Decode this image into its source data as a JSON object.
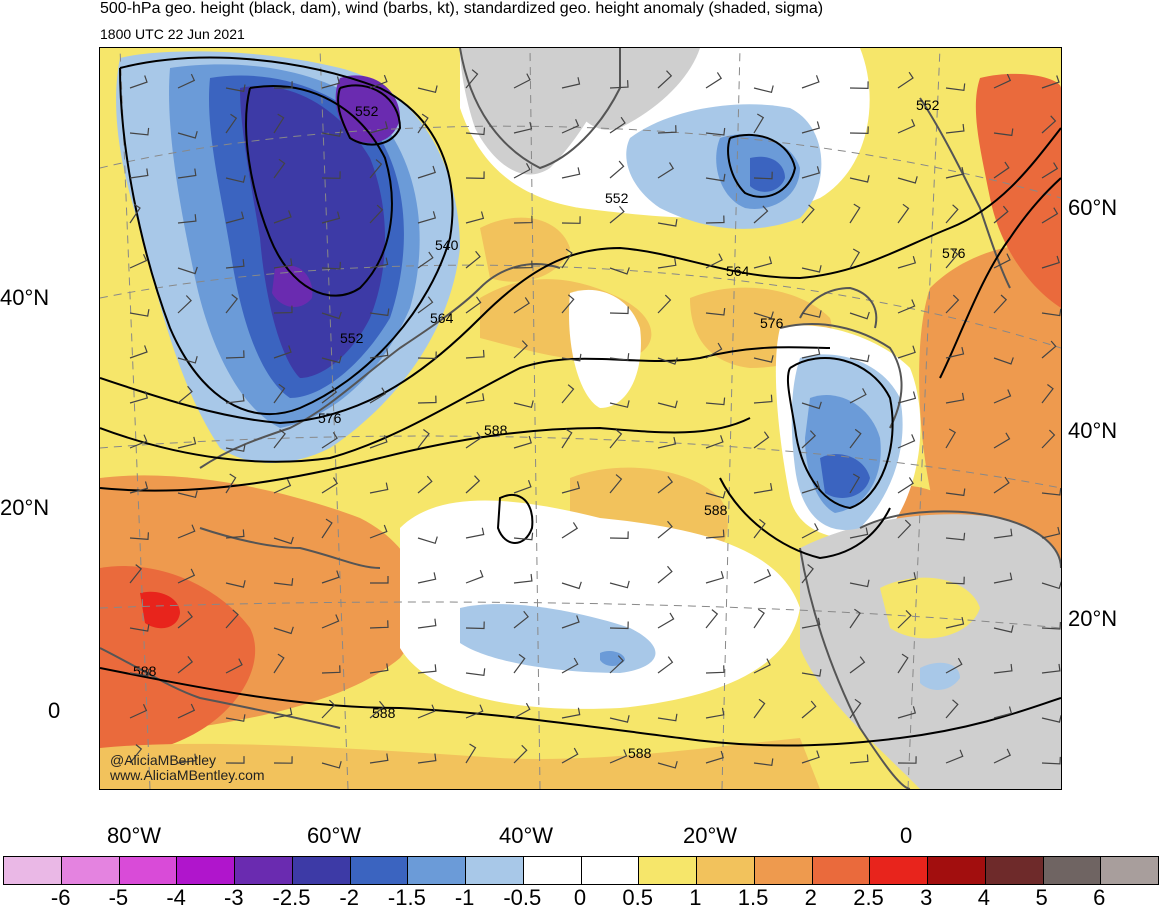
{
  "header": {
    "title": "500-hPa geo. height (black, dam), wind (barbs, kt), standardized geo. height anomaly (shaded, sigma)",
    "valid_time": "1800 UTC 22 Jun 2021"
  },
  "axes": {
    "left_lat_labels": [
      "40°N",
      "20°N",
      "0"
    ],
    "right_lat_labels": [
      "60°N",
      "40°N",
      "20°N"
    ],
    "lon_labels": [
      "80°W",
      "60°W",
      "40°W",
      "20°W",
      "0"
    ]
  },
  "contour_labels": [
    "552",
    "540",
    "552",
    "564",
    "576",
    "588",
    "552",
    "564",
    "576",
    "552",
    "576",
    "588",
    "588",
    "588",
    "588"
  ],
  "credits": {
    "twitter": "@AliciaMBentley",
    "website": "www.AliciaMBentley.com"
  },
  "colorbar": {
    "labels": [
      "-6",
      "-5",
      "-4",
      "-3",
      "-2.5",
      "-2",
      "-1.5",
      "-1",
      "-0.5",
      "0",
      "0.5",
      "1",
      "1.5",
      "2",
      "2.5",
      "3",
      "4",
      "5",
      "6"
    ],
    "colors": [
      "#eab8e6",
      "#e483e0",
      "#d94bd8",
      "#b015cc",
      "#6a2bb0",
      "#3d3aa6",
      "#3b64c0",
      "#6b9bd8",
      "#a8c8e8",
      "#ffffff",
      "#ffffff",
      "#f6e66a",
      "#f2c25c",
      "#ee9a4e",
      "#ea6a3c",
      "#e8241c",
      "#a20e0e",
      "#6e2a2a",
      "#6f6462",
      "#a89e9c"
    ]
  }
}
